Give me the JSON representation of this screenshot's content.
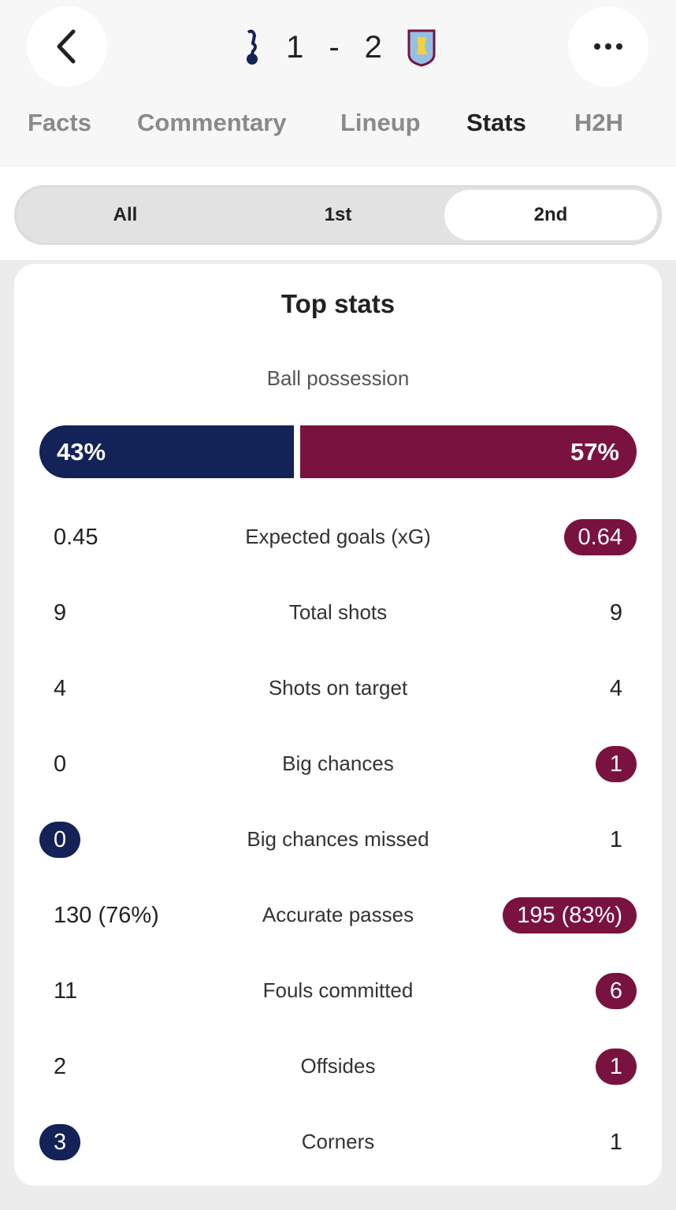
{
  "header": {
    "home_score": "1",
    "separator": "-",
    "away_score": "2",
    "home_crest": "tottenham-crest",
    "away_crest": "aston-villa-crest"
  },
  "tabs": [
    {
      "label": "Facts"
    },
    {
      "label": "Commentary"
    },
    {
      "label": "Lineup"
    },
    {
      "label": "Stats",
      "active": true
    },
    {
      "label": "H2H"
    }
  ],
  "periods": [
    {
      "label": "All"
    },
    {
      "label": "1st"
    },
    {
      "label": "2nd",
      "active": true
    }
  ],
  "colors": {
    "home": "#132257",
    "away": "#7a1240"
  },
  "top_stats": {
    "title": "Top stats",
    "possession": {
      "label": "Ball possession",
      "home": "43%",
      "away": "57%",
      "home_value": 43,
      "away_value": 57
    },
    "rows": [
      {
        "label": "Expected goals (xG)",
        "home": "0.45",
        "away": "0.64",
        "highlight": "away"
      },
      {
        "label": "Total shots",
        "home": "9",
        "away": "9",
        "highlight": null
      },
      {
        "label": "Shots on target",
        "home": "4",
        "away": "4",
        "highlight": null
      },
      {
        "label": "Big chances",
        "home": "0",
        "away": "1",
        "highlight": "away"
      },
      {
        "label": "Big chances missed",
        "home": "0",
        "away": "1",
        "highlight": "home"
      },
      {
        "label": "Accurate passes",
        "home": "130 (76%)",
        "away": "195 (83%)",
        "highlight": "away"
      },
      {
        "label": "Fouls committed",
        "home": "11",
        "away": "6",
        "highlight": "away"
      },
      {
        "label": "Offsides",
        "home": "2",
        "away": "1",
        "highlight": "away"
      },
      {
        "label": "Corners",
        "home": "3",
        "away": "1",
        "highlight": "home"
      }
    ]
  }
}
